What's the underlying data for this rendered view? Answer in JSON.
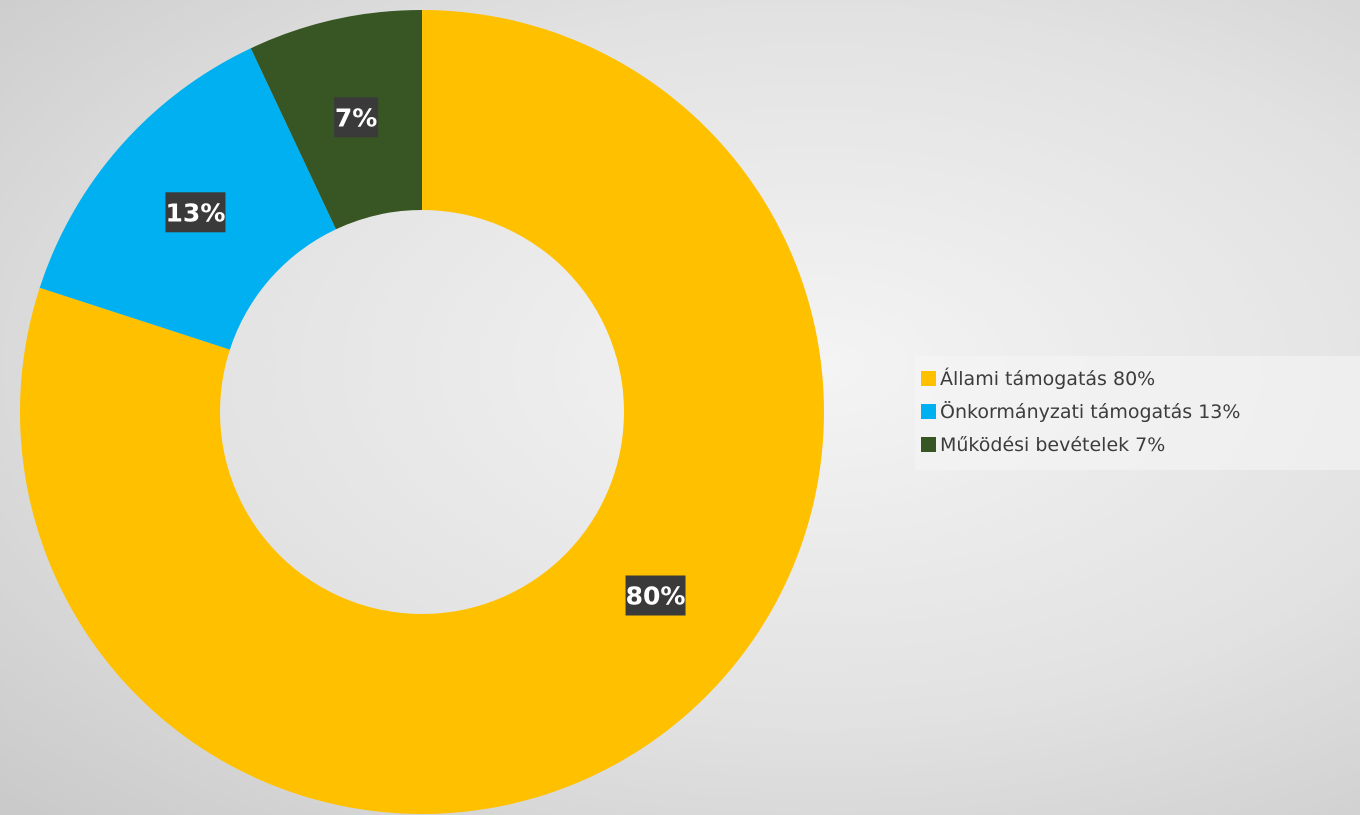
{
  "chart_data": {
    "type": "pie",
    "style": "donut",
    "title": "",
    "series": [
      {
        "name": "Állami támogatás",
        "value": 80,
        "label": "80%",
        "legend": "Állami támogatás 80%",
        "color": "#FFC000"
      },
      {
        "name": "Önkormányzati támogatás",
        "value": 13,
        "label": "13%",
        "legend": "Önkormányzati támogatás 13%",
        "color": "#00B0F0"
      },
      {
        "name": "Működési bevételek",
        "value": 7,
        "label": "7%",
        "legend": "Működési bevételek 7%",
        "color": "#375623"
      }
    ],
    "legend_position": "right",
    "start_angle": "12 o'clock",
    "direction": "clockwise"
  }
}
